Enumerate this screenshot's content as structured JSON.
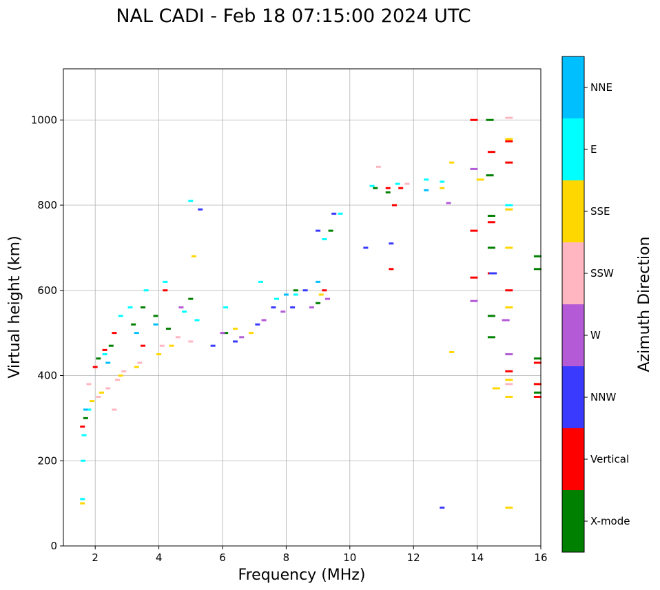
{
  "chart_data": {
    "type": "scatter",
    "title": "NAL CADI - Feb 18 07:15:00 2024 UTC",
    "xlabel": "Frequency (MHz)",
    "ylabel": "Virtual height (km)",
    "xlim": [
      1,
      16
    ],
    "ylim": [
      0,
      1120
    ],
    "xticks": [
      2,
      4,
      6,
      8,
      10,
      12,
      14,
      16
    ],
    "yticks": [
      0,
      200,
      400,
      600,
      800,
      1000
    ],
    "grid": true,
    "colorbar": {
      "label": "Azimuth Direction",
      "categories": [
        {
          "name": "X-mode",
          "color": "#008000"
        },
        {
          "name": "Vertical",
          "color": "#ff0000"
        },
        {
          "name": "NNW",
          "color": "#3a3aff"
        },
        {
          "name": "W",
          "color": "#b45ad6"
        },
        {
          "name": "SSW",
          "color": "#ffb6c1"
        },
        {
          "name": "SSE",
          "color": "#ffd700"
        },
        {
          "name": "E",
          "color": "#00ffff"
        },
        {
          "name": "NNE",
          "color": "#00bfff"
        }
      ]
    },
    "series": [
      {
        "name": "X-mode",
        "points": [
          [
            2.1,
            440
          ],
          [
            2.5,
            470
          ],
          [
            3.2,
            520
          ],
          [
            3.5,
            560
          ],
          [
            3.9,
            540
          ],
          [
            4.3,
            510
          ],
          [
            5.0,
            580
          ],
          [
            9.0,
            570
          ],
          [
            9.4,
            740
          ],
          [
            10.8,
            840
          ],
          [
            11.2,
            830
          ],
          [
            14.4,
            1000
          ],
          [
            14.4,
            870
          ],
          [
            14.45,
            775
          ],
          [
            14.45,
            700
          ],
          [
            14.45,
            540
          ],
          [
            14.45,
            490
          ],
          [
            15.9,
            680
          ],
          [
            15.9,
            650
          ],
          [
            15.9,
            440
          ],
          [
            15.9,
            360
          ],
          [
            6.1,
            500
          ],
          [
            8.3,
            600
          ],
          [
            1.7,
            300
          ]
        ]
      },
      {
        "name": "Vertical",
        "points": [
          [
            1.6,
            280
          ],
          [
            2.0,
            420
          ],
          [
            2.3,
            460
          ],
          [
            2.6,
            500
          ],
          [
            3.5,
            470
          ],
          [
            4.2,
            600
          ],
          [
            9.2,
            600
          ],
          [
            11.2,
            840
          ],
          [
            11.4,
            800
          ],
          [
            11.6,
            840
          ],
          [
            13.9,
            1000
          ],
          [
            13.9,
            740
          ],
          [
            13.9,
            630
          ],
          [
            14.45,
            925
          ],
          [
            14.45,
            640
          ],
          [
            14.45,
            760
          ],
          [
            15.0,
            950
          ],
          [
            15.0,
            900
          ],
          [
            15.0,
            600
          ],
          [
            15.0,
            410
          ],
          [
            15.9,
            430
          ],
          [
            15.9,
            380
          ],
          [
            15.9,
            350
          ],
          [
            11.3,
            650
          ]
        ]
      },
      {
        "name": "NNW",
        "points": [
          [
            5.3,
            790
          ],
          [
            5.7,
            470
          ],
          [
            6.4,
            480
          ],
          [
            7.1,
            520
          ],
          [
            7.6,
            560
          ],
          [
            8.2,
            560
          ],
          [
            8.6,
            600
          ],
          [
            9.0,
            740
          ],
          [
            9.5,
            780
          ],
          [
            10.5,
            700
          ],
          [
            12.9,
            90
          ],
          [
            14.5,
            640
          ],
          [
            11.3,
            710
          ]
        ]
      },
      {
        "name": "W",
        "points": [
          [
            6.0,
            500
          ],
          [
            6.6,
            490
          ],
          [
            7.3,
            530
          ],
          [
            7.9,
            550
          ],
          [
            8.8,
            560
          ],
          [
            9.3,
            580
          ],
          [
            13.1,
            805
          ],
          [
            13.9,
            885
          ],
          [
            13.9,
            575
          ],
          [
            14.9,
            530
          ],
          [
            15.0,
            450
          ],
          [
            4.7,
            560
          ]
        ]
      },
      {
        "name": "SSW",
        "points": [
          [
            1.8,
            380
          ],
          [
            2.1,
            350
          ],
          [
            2.4,
            370
          ],
          [
            2.7,
            390
          ],
          [
            2.9,
            410
          ],
          [
            3.4,
            430
          ],
          [
            4.1,
            470
          ],
          [
            4.6,
            490
          ],
          [
            5.0,
            480
          ],
          [
            10.9,
            890
          ],
          [
            11.8,
            850
          ],
          [
            15.0,
            1005
          ],
          [
            15.0,
            790
          ],
          [
            15.0,
            380
          ],
          [
            2.6,
            320
          ]
        ]
      },
      {
        "name": "SSE",
        "points": [
          [
            1.6,
            100
          ],
          [
            1.9,
            340
          ],
          [
            2.2,
            360
          ],
          [
            2.8,
            400
          ],
          [
            3.3,
            420
          ],
          [
            4.0,
            450
          ],
          [
            4.4,
            470
          ],
          [
            5.1,
            680
          ],
          [
            6.4,
            510
          ],
          [
            6.9,
            500
          ],
          [
            9.1,
            590
          ],
          [
            13.2,
            455
          ],
          [
            13.2,
            900
          ],
          [
            14.1,
            860
          ],
          [
            14.6,
            370
          ],
          [
            15.0,
            955
          ],
          [
            15.0,
            790
          ],
          [
            15.0,
            700
          ],
          [
            15.0,
            560
          ],
          [
            15.0,
            390
          ],
          [
            15.0,
            350
          ],
          [
            15.0,
            90
          ],
          [
            12.9,
            840
          ]
        ]
      },
      {
        "name": "E",
        "points": [
          [
            1.6,
            110
          ],
          [
            1.62,
            200
          ],
          [
            1.65,
            260
          ],
          [
            1.8,
            320
          ],
          [
            2.3,
            450
          ],
          [
            2.8,
            540
          ],
          [
            3.1,
            560
          ],
          [
            3.6,
            600
          ],
          [
            4.2,
            620
          ],
          [
            4.8,
            550
          ],
          [
            5.2,
            530
          ],
          [
            6.1,
            560
          ],
          [
            7.2,
            620
          ],
          [
            7.7,
            580
          ],
          [
            8.3,
            590
          ],
          [
            9.2,
            720
          ],
          [
            9.7,
            780
          ],
          [
            10.7,
            845
          ],
          [
            11.5,
            850
          ],
          [
            12.4,
            860
          ],
          [
            12.9,
            855
          ],
          [
            15.0,
            800
          ],
          [
            5.0,
            810
          ]
        ]
      },
      {
        "name": "NNE",
        "points": [
          [
            1.7,
            320
          ],
          [
            2.4,
            430
          ],
          [
            3.3,
            500
          ],
          [
            3.9,
            520
          ],
          [
            8.0,
            590
          ],
          [
            9.0,
            620
          ],
          [
            12.4,
            835
          ]
        ]
      }
    ]
  }
}
